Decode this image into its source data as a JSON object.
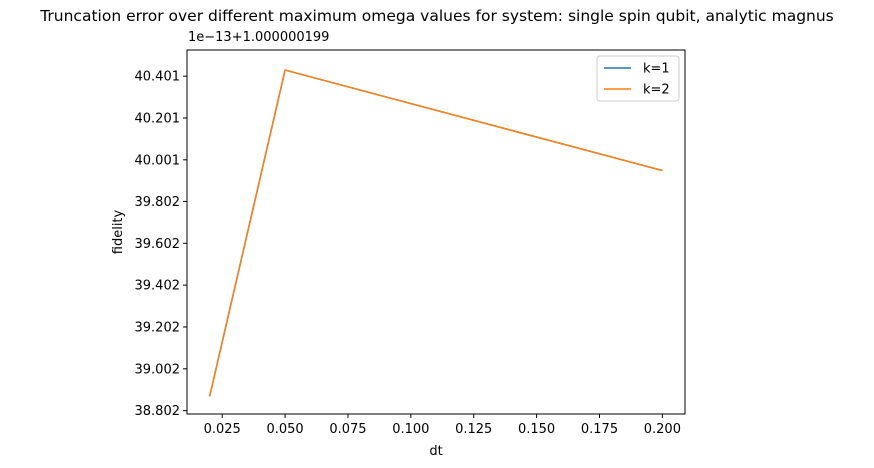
{
  "chart_data": {
    "type": "line",
    "title": "Truncation error over different maximum omega values for system: single spin qubit, analytic magnus",
    "xlabel": "dt",
    "ylabel": "fidelity",
    "y_offset_label": "1e−13+1.000000199",
    "x_ticks": [
      "0.025",
      "0.050",
      "0.075",
      "0.100",
      "0.125",
      "0.150",
      "0.175",
      "0.200"
    ],
    "x_tick_values": [
      0.025,
      0.05,
      0.075,
      0.1,
      0.125,
      0.15,
      0.175,
      0.2
    ],
    "y_ticks": [
      "38.802",
      "39.002",
      "39.202",
      "39.402",
      "39.602",
      "39.802",
      "40.001",
      "40.201",
      "40.401"
    ],
    "y_tick_values": [
      38.802,
      39.002,
      39.202,
      39.402,
      39.602,
      39.802,
      40.001,
      40.201,
      40.401
    ],
    "xlim": [
      0.011,
      0.209
    ],
    "ylim": [
      38.786,
      40.526
    ],
    "grid": false,
    "legend_position": "top-right",
    "x": [
      0.02,
      0.05,
      0.2
    ],
    "series": [
      {
        "name": "k=1",
        "color": "#1f77b4",
        "values": [
          38.87,
          40.43,
          39.95
        ]
      },
      {
        "name": "k=2",
        "color": "#ff7f0e",
        "values": [
          38.87,
          40.43,
          39.95
        ]
      }
    ]
  }
}
